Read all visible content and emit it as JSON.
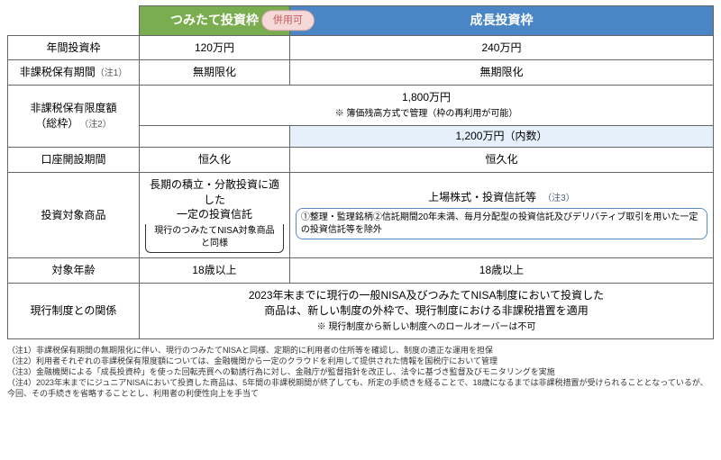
{
  "colors": {
    "tsumitate_bg": "#7aad4f",
    "growth_bg": "#4a86c5",
    "growth_cell_bg": "#e6f0fa"
  },
  "header": {
    "tsumitate": "つみたて投資枠",
    "growth": "成長投資枠",
    "combinable": "併用可"
  },
  "rows": {
    "annual": {
      "label": "年間投資枠",
      "tsumitate": "120万円",
      "growth": "240万円"
    },
    "holding_period": {
      "label": "非課税保有期間",
      "note": "（注1）",
      "tsumitate": "無期限化",
      "growth": "無期限化"
    },
    "limit_total": {
      "label_l1": "非課税保有限度額",
      "label_l2": "（総枠）",
      "note": "（注2）",
      "combined_l1": "1,800万円",
      "combined_l2": "※ 簿価残高方式で管理（枠の再利用が可能）",
      "growth_sub": "1,200万円（内数）"
    },
    "opening": {
      "label": "口座開設期間",
      "tsumitate": "恒久化",
      "growth": "恒久化"
    },
    "products": {
      "label": "投資対象商品",
      "tsumitate_l1": "長期の積立・分散投資に適した",
      "tsumitate_l2": "一定の投資信託",
      "tsumitate_bracket": "現行のつみたてNISA対象商品と同様",
      "growth_l1": "上場株式・投資信託等",
      "growth_note": "（注3）",
      "growth_excl": "①整理・監理銘柄②信託期間20年未満、毎月分配型の投資信託及びデリバティブ取引を用いた一定の投資信託等を除外"
    },
    "age": {
      "label": "対象年齢",
      "tsumitate": "18歳以上",
      "growth": "18歳以上"
    },
    "relation": {
      "label": "現行制度との関係",
      "l1": "2023年末までに現行の一般NISA及びつみたてNISA制度において投資した",
      "l2": "商品は、新しい制度の外枠で、現行制度における非課税措置を適用",
      "l3": "※ 現行制度から新しい制度へのロールオーバーは不可"
    }
  },
  "footnotes": {
    "n1": "（注1）非課税保有期間の無期限化に伴い、現行のつみたてNISAと同様、定期的に利用者の住所等を確認し、制度の適正な運用を担保",
    "n2": "（注2）利用者それぞれの非課税保有限度額については、金融機関から一定のクラウドを利用して提供された情報を国税庁において管理",
    "n3": "（注3）金融機関による「成長投資枠」を使った回転売買への勧誘行為に対し、金融庁が監督指針を改正し、法令に基づき監督及びモニタリングを実施",
    "n4": "（注4）2023年末までにジュニアNISAにおいて投資した商品は、5年間の非課税期間が終了しても、所定の手続きを経ることで、18歳になるまでは非課税措置が受けられることとなっているが、今回、その手続きを省略することとし、利用者の利便性向上を手当て"
  }
}
